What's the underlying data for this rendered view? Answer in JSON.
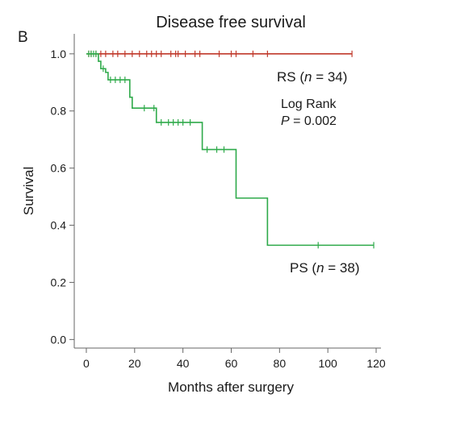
{
  "chart_data": {
    "type": "line",
    "panel_label": "B",
    "title": "Disease free survival",
    "xlabel": "Months after surgery",
    "ylabel": "Survival",
    "xlim": [
      -5,
      122
    ],
    "ylim": [
      -0.03,
      1.07
    ],
    "xticks": [
      0,
      20,
      40,
      60,
      80,
      100,
      120
    ],
    "xtick_labels": [
      "0",
      "20",
      "40",
      "60",
      "80",
      "100",
      "120"
    ],
    "yticks": [
      0.0,
      0.2,
      0.4,
      0.6,
      0.8,
      1.0
    ],
    "ytick_labels": [
      "0.0",
      "0.2",
      "0.4",
      "0.6",
      "0.8",
      "1.0"
    ],
    "grid": false,
    "series": [
      {
        "name": "RS",
        "label_text": "RS (n = 34)",
        "color": "#c0392b",
        "steps": [
          [
            0,
            1.0
          ],
          [
            110,
            1.0
          ]
        ],
        "censored": [
          [
            1,
            1.0
          ],
          [
            2,
            1.0
          ],
          [
            4,
            1.0
          ],
          [
            6,
            1.0
          ],
          [
            8,
            1.0
          ],
          [
            11,
            1.0
          ],
          [
            13,
            1.0
          ],
          [
            16,
            1.0
          ],
          [
            19,
            1.0
          ],
          [
            22,
            1.0
          ],
          [
            25,
            1.0
          ],
          [
            27,
            1.0
          ],
          [
            29,
            1.0
          ],
          [
            31,
            1.0
          ],
          [
            35,
            1.0
          ],
          [
            37,
            1.0
          ],
          [
            38,
            1.0
          ],
          [
            41,
            1.0
          ],
          [
            45,
            1.0
          ],
          [
            47,
            1.0
          ],
          [
            55,
            1.0
          ],
          [
            60,
            1.0
          ],
          [
            62,
            1.0
          ],
          [
            69,
            1.0
          ],
          [
            75,
            1.0
          ],
          [
            110,
            1.0
          ]
        ]
      },
      {
        "name": "PS",
        "label_text": "PS (n = 38)",
        "color": "#2eaa4a",
        "steps": [
          [
            0,
            1.0
          ],
          [
            5,
            0.974
          ],
          [
            6,
            0.948
          ],
          [
            8,
            0.935
          ],
          [
            9,
            0.909
          ],
          [
            18,
            0.848
          ],
          [
            19,
            0.81
          ],
          [
            28,
            0.81
          ],
          [
            29,
            0.76
          ],
          [
            47,
            0.76
          ],
          [
            48,
            0.665
          ],
          [
            61,
            0.665
          ],
          [
            62,
            0.495
          ],
          [
            74,
            0.495
          ],
          [
            75,
            0.33
          ],
          [
            119,
            0.33
          ]
        ],
        "censored": [
          [
            1,
            1.0
          ],
          [
            2,
            1.0
          ],
          [
            3,
            1.0
          ],
          [
            4,
            1.0
          ],
          [
            7,
            0.948
          ],
          [
            10,
            0.909
          ],
          [
            12,
            0.909
          ],
          [
            14,
            0.909
          ],
          [
            16,
            0.909
          ],
          [
            24,
            0.81
          ],
          [
            28,
            0.81
          ],
          [
            31,
            0.76
          ],
          [
            34,
            0.76
          ],
          [
            36,
            0.76
          ],
          [
            38,
            0.76
          ],
          [
            40,
            0.76
          ],
          [
            43,
            0.76
          ],
          [
            50,
            0.665
          ],
          [
            54,
            0.665
          ],
          [
            57,
            0.665
          ],
          [
            96,
            0.33
          ],
          [
            119,
            0.33
          ]
        ]
      }
    ],
    "annotations": {
      "test_line1": "Log Rank",
      "test_p_symbol": "P",
      "test_p_value": " = 0.002"
    }
  }
}
